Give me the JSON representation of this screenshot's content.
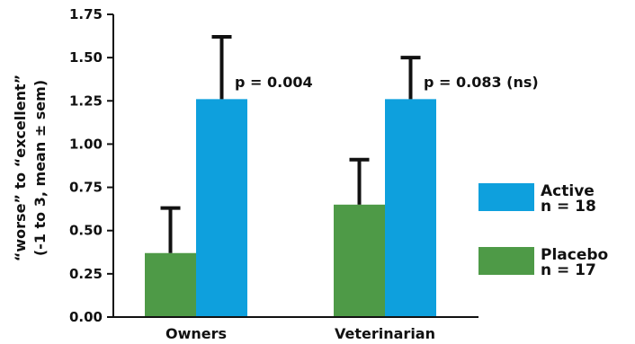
{
  "chart_data": {
    "type": "bar",
    "categories": [
      "Owners",
      "Veterinarian"
    ],
    "series": [
      {
        "name": "Placebo",
        "n_label": "n = 17",
        "color": "#4e9a47",
        "values": [
          0.37,
          0.65
        ],
        "errors": [
          0.26,
          0.26
        ]
      },
      {
        "name": "Active",
        "n_label": "n = 18",
        "color": "#0ea0dd",
        "values": [
          1.26,
          1.26
        ],
        "errors": [
          0.36,
          0.24
        ]
      }
    ],
    "ylim": [
      0,
      1.75
    ],
    "yticks": [
      "0.00",
      "0.25",
      "0.50",
      "0.75",
      "1.00",
      "1.25",
      "1.50",
      "1.75"
    ],
    "ylabel_line1": "“worse” to “excellent”",
    "ylabel_line2": "(-1 to 3, mean ± sem)",
    "annotations": [
      "p = 0.004",
      "p = 0.083 (ns)"
    ],
    "legend_position": "right"
  }
}
